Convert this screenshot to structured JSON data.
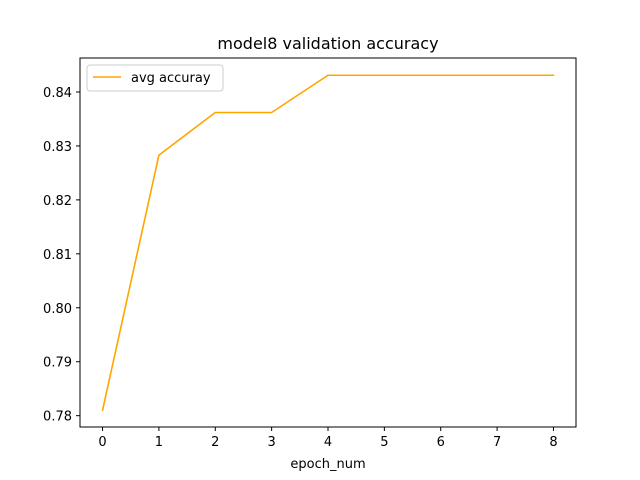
{
  "chart_data": {
    "type": "line",
    "title": "model8 validation accuracy",
    "xlabel": "epoch_num",
    "ylabel": "",
    "x": [
      0,
      1,
      2,
      3,
      4,
      5,
      6,
      7,
      8
    ],
    "series": [
      {
        "name": "avg accuray",
        "color": "#ffa500",
        "values": [
          0.781,
          0.8283,
          0.8362,
          0.8362,
          0.8431,
          0.8431,
          0.8431,
          0.8431,
          0.8431
        ]
      }
    ],
    "xlim": [
      -0.4,
      8.4
    ],
    "ylim": [
      0.7779,
      0.8463
    ],
    "xticks": [
      0,
      1,
      2,
      3,
      4,
      5,
      6,
      7,
      8
    ],
    "yticks": [
      0.78,
      0.79,
      0.8,
      0.81,
      0.82,
      0.83,
      0.84
    ],
    "ytick_labels": [
      "0.78",
      "0.79",
      "0.80",
      "0.81",
      "0.82",
      "0.83",
      "0.84"
    ],
    "grid": false,
    "legend_position": "top-left"
  }
}
